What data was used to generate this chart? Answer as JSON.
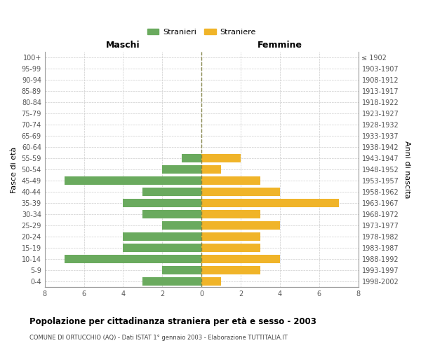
{
  "age_groups_bottom_to_top": [
    "0-4",
    "5-9",
    "10-14",
    "15-19",
    "20-24",
    "25-29",
    "30-34",
    "35-39",
    "40-44",
    "45-49",
    "50-54",
    "55-59",
    "60-64",
    "65-69",
    "70-74",
    "75-79",
    "80-84",
    "85-89",
    "90-94",
    "95-99",
    "100+"
  ],
  "birth_years_bottom_to_top": [
    "1998-2002",
    "1993-1997",
    "1988-1992",
    "1983-1987",
    "1978-1982",
    "1973-1977",
    "1968-1972",
    "1963-1967",
    "1958-1962",
    "1953-1957",
    "1948-1952",
    "1943-1947",
    "1938-1942",
    "1933-1937",
    "1928-1932",
    "1923-1927",
    "1918-1922",
    "1913-1917",
    "1908-1912",
    "1903-1907",
    "≤ 1902"
  ],
  "males_bottom_to_top": [
    3,
    2,
    7,
    4,
    4,
    2,
    3,
    4,
    3,
    7,
    2,
    1,
    0,
    0,
    0,
    0,
    0,
    0,
    0,
    0,
    0
  ],
  "females_bottom_to_top": [
    1,
    3,
    4,
    3,
    3,
    4,
    3,
    7,
    4,
    3,
    1,
    2,
    0,
    0,
    0,
    0,
    0,
    0,
    0,
    0,
    0
  ],
  "male_color": "#6aaa5e",
  "female_color": "#f0b429",
  "background_color": "#ffffff",
  "grid_color": "#cccccc",
  "title": "Popolazione per cittadinanza straniera per età e sesso - 2003",
  "subtitle": "COMUNE DI ORTUCCHIO (AQ) - Dati ISTAT 1° gennaio 2003 - Elaborazione TUTTITALIA.IT",
  "xlabel_left": "Maschi",
  "xlabel_right": "Femmine",
  "ylabel_left": "Fasce di età",
  "ylabel_right": "Anni di nascita",
  "legend_male": "Stranieri",
  "legend_female": "Straniere",
  "xlim": 8,
  "figsize": [
    6.0,
    5.0
  ],
  "dpi": 100
}
